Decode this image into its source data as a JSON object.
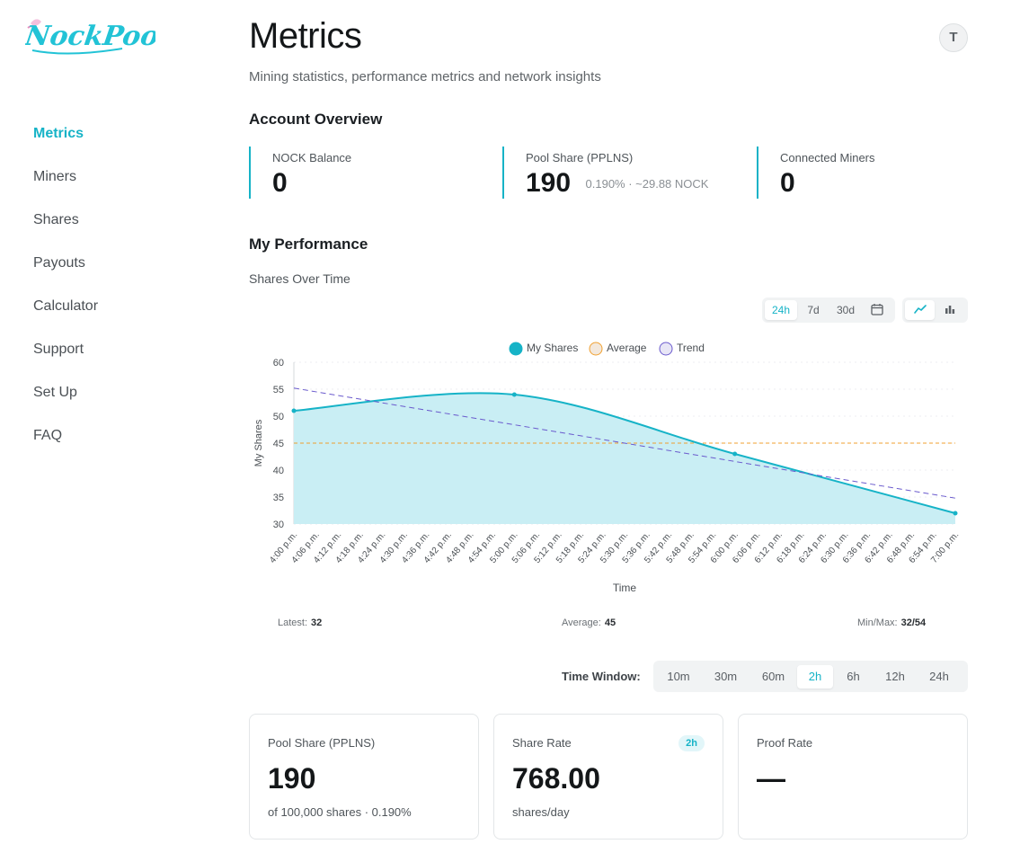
{
  "brand": {
    "logo_text": "NockPool"
  },
  "sidebar": {
    "items": [
      {
        "label": "Metrics",
        "active": true
      },
      {
        "label": "Miners"
      },
      {
        "label": "Shares"
      },
      {
        "label": "Payouts"
      },
      {
        "label": "Calculator"
      },
      {
        "label": "Support"
      },
      {
        "label": "Set Up"
      },
      {
        "label": "FAQ"
      }
    ]
  },
  "header": {
    "title": "Metrics",
    "subtitle": "Mining statistics, performance metrics and network insights",
    "avatar_initial": "T"
  },
  "overview": {
    "title": "Account Overview",
    "stats": [
      {
        "label": "NOCK Balance",
        "value": "0",
        "extra": ""
      },
      {
        "label": "Pool Share (PPLNS)",
        "value": "190",
        "extra": "0.190% · ~29.88 NOCK"
      },
      {
        "label": "Connected Miners",
        "value": "0",
        "extra": ""
      }
    ]
  },
  "performance": {
    "title": "My Performance",
    "chart_title": "Shares Over Time",
    "range_options": [
      "24h",
      "7d",
      "30d"
    ],
    "range_selected": "24h",
    "chart_type_selected": "line",
    "summary": {
      "latest_label": "Latest:",
      "latest_value": "32",
      "average_label": "Average:",
      "average_value": "45",
      "minmax_label": "Min/Max:",
      "minmax_value": "32/54"
    }
  },
  "time_window": {
    "label": "Time Window:",
    "options": [
      "10m",
      "30m",
      "60m",
      "2h",
      "6h",
      "12h",
      "24h"
    ],
    "selected": "2h"
  },
  "cards": [
    {
      "label": "Pool Share (PPLNS)",
      "value": "190",
      "sub": "of 100,000 shares · 0.190%",
      "badge": ""
    },
    {
      "label": "Share Rate",
      "value": "768.00",
      "sub": "shares/day",
      "badge": "2h"
    },
    {
      "label": "Proof Rate",
      "value": "—",
      "sub": "",
      "badge": ""
    }
  ],
  "colors": {
    "accent": "#16b3c7",
    "area_fill": "#c9eef4",
    "average_line": "#f0a030",
    "trend_line": "#6a5acd"
  },
  "chart_data": {
    "type": "area",
    "xlabel": "Time",
    "ylabel": "My Shares",
    "ylim": [
      30,
      60
    ],
    "yticks": [
      30,
      35,
      40,
      45,
      50,
      55,
      60
    ],
    "x": [
      "4:00 p.m.",
      "4:06 p.m.",
      "4:12 p.m.",
      "4:18 p.m.",
      "4:24 p.m.",
      "4:30 p.m.",
      "4:36 p.m.",
      "4:42 p.m.",
      "4:48 p.m.",
      "4:54 p.m.",
      "5:00 p.m.",
      "5:06 p.m.",
      "5:12 p.m.",
      "5:18 p.m.",
      "5:24 p.m.",
      "5:30 p.m.",
      "5:36 p.m.",
      "5:42 p.m.",
      "5:48 p.m.",
      "5:54 p.m.",
      "6:00 p.m.",
      "6:06 p.m.",
      "6:12 p.m.",
      "6:18 p.m.",
      "6:24 p.m.",
      "6:30 p.m.",
      "6:36 p.m.",
      "6:42 p.m.",
      "6:48 p.m.",
      "6:54 p.m.",
      "7:00 p.m."
    ],
    "legend": [
      "My Shares",
      "Average",
      "Trend"
    ],
    "legend_position": "top",
    "grid": true,
    "series": [
      {
        "name": "My Shares",
        "points": [
          {
            "x": "4:00 p.m.",
            "y": 51
          },
          {
            "x": "5:00 p.m.",
            "y": 54
          },
          {
            "x": "6:00 p.m.",
            "y": 43
          },
          {
            "x": "7:00 p.m.",
            "y": 32
          }
        ]
      },
      {
        "name": "Average",
        "points": [
          {
            "x": "4:00 p.m.",
            "y": 45
          },
          {
            "x": "7:00 p.m.",
            "y": 45
          }
        ]
      },
      {
        "name": "Trend",
        "points": [
          {
            "x": "4:00 p.m.",
            "y": 55.2
          },
          {
            "x": "7:00 p.m.",
            "y": 34.8
          }
        ]
      }
    ]
  }
}
